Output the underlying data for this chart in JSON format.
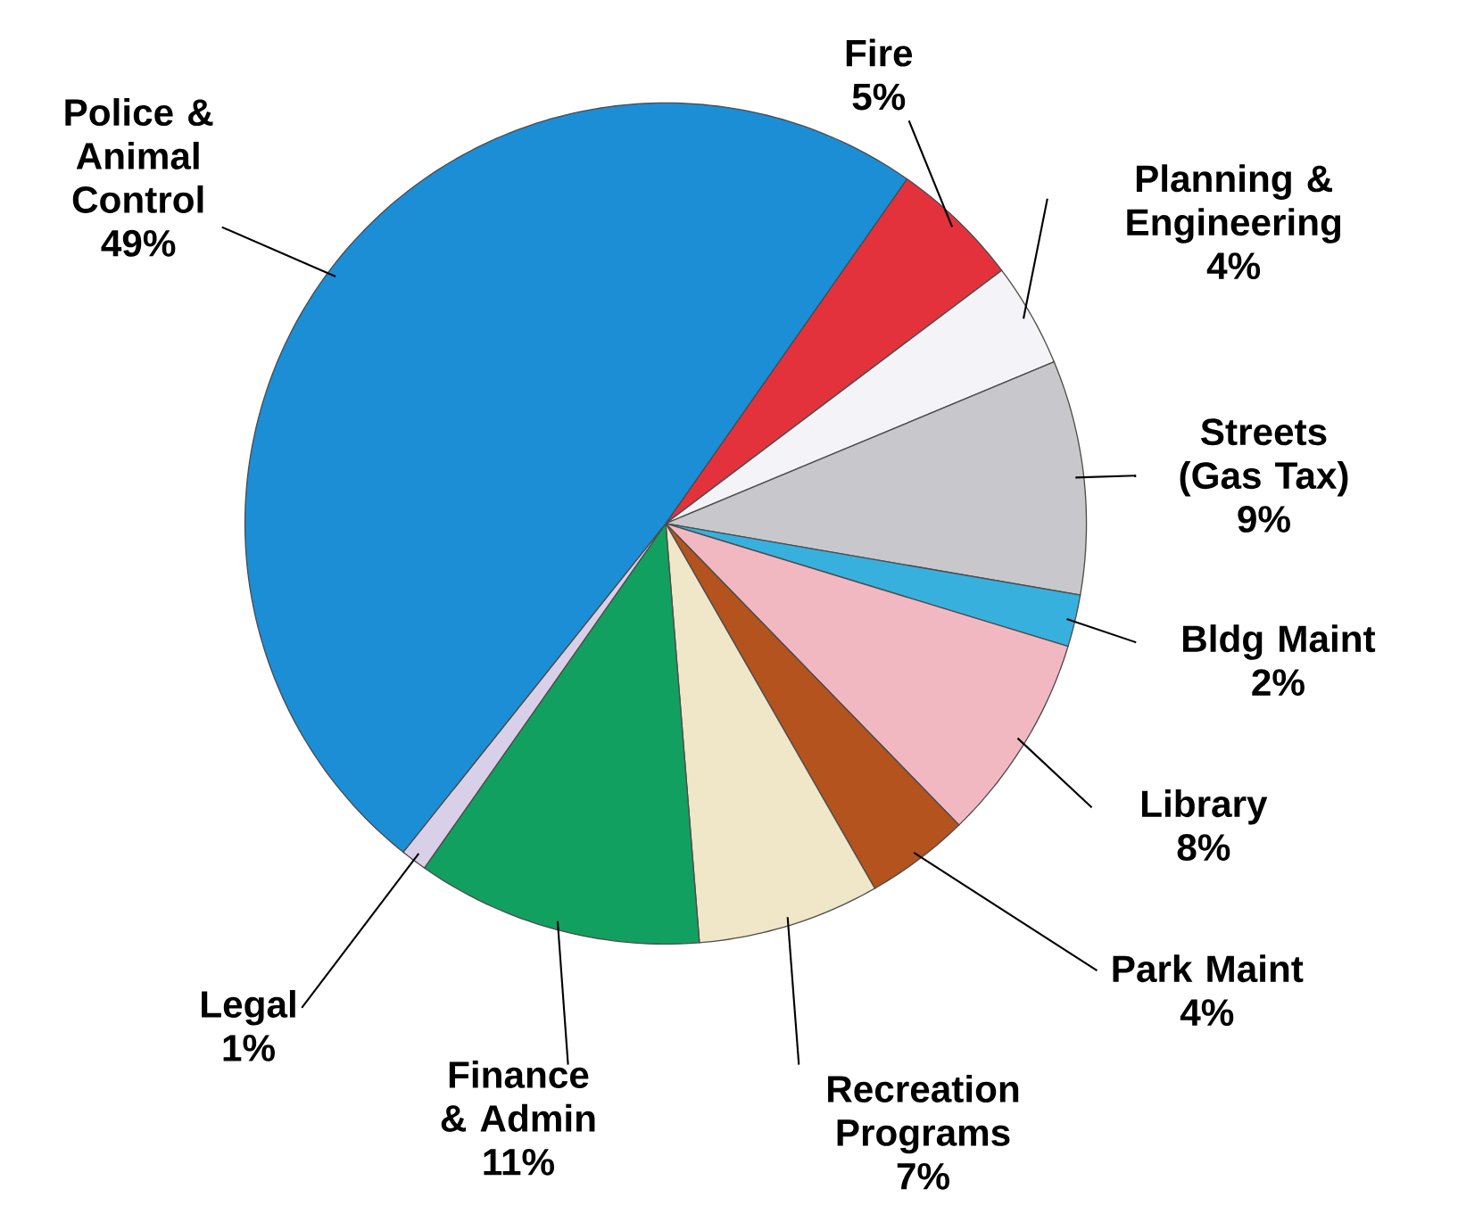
{
  "chart_data": {
    "type": "pie",
    "categories": [
      "Fire",
      "Planning & Engineering",
      "Streets (Gas Tax)",
      "Bldg Maint",
      "Library",
      "Park Maint",
      "Recreation Programs",
      "Finance & Admin",
      "Legal",
      "Police & Animal Control"
    ],
    "values": [
      5,
      4,
      9,
      2,
      8,
      4,
      7,
      11,
      1,
      49
    ],
    "colors": [
      "#e4323c",
      "#f4f4f8",
      "#c8c8cc",
      "#38b0de",
      "#f2b8c2",
      "#b4531e",
      "#f0e6c8",
      "#12a060",
      "#d8d0e8",
      "#1c8ed6"
    ],
    "value_labels": [
      "5%",
      "4%",
      "9%",
      "2%",
      "8%",
      "4%",
      "7%",
      "11%",
      "1%",
      "49%"
    ]
  }
}
